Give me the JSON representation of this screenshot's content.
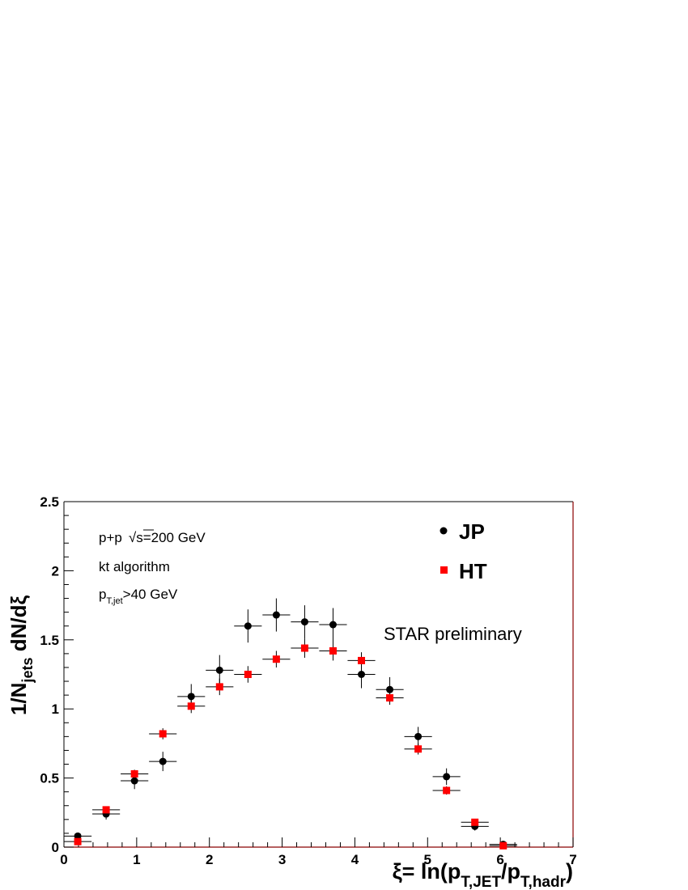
{
  "chart_data": {
    "type": "scatter",
    "title": "",
    "xlabel": {
      "prefix": "ξ= ln(p",
      "sub1": "T,JET",
      "mid": "/p",
      "sub2": "T,hadr",
      "suffix": ")"
    },
    "ylabel": {
      "prefix": "1/N",
      "sub": "jets",
      "suffix": " dN/dξ"
    },
    "xlim": [
      0,
      7
    ],
    "ylim": [
      0,
      2.5
    ],
    "x_ticks": [
      "0",
      "1",
      "2",
      "3",
      "4",
      "5",
      "6",
      "7"
    ],
    "y_ticks": [
      "0",
      "0.5",
      "1",
      "1.5",
      "2",
      "2.5"
    ],
    "grid": false,
    "legend": {
      "position": "top-right",
      "entries": [
        "JP",
        "HT"
      ]
    },
    "annotations": {
      "energy_prefix": "p+p",
      "energy_sqrt": "√",
      "energy_value": "s=200 GeV",
      "algorithm": "kt algorithm",
      "cut_prefix": "p",
      "cut_sub": "T,jet",
      "cut_suffix": ">40 GeV",
      "preliminary": "STAR preliminary"
    },
    "series": [
      {
        "name": "JP",
        "marker": "circle",
        "color": "#000000",
        "x": [
          0.19,
          0.58,
          0.97,
          1.36,
          1.75,
          2.14,
          2.53,
          2.92,
          3.31,
          3.7,
          4.09,
          4.48,
          4.87,
          5.26,
          5.65,
          6.04
        ],
        "y": [
          0.08,
          0.24,
          0.48,
          0.62,
          1.09,
          1.28,
          1.6,
          1.68,
          1.63,
          1.61,
          1.25,
          1.14,
          0.8,
          0.51,
          0.15,
          0.02
        ],
        "yerr": [
          0.02,
          0.04,
          0.06,
          0.07,
          0.09,
          0.11,
          0.12,
          0.12,
          0.12,
          0.12,
          0.1,
          0.09,
          0.07,
          0.06,
          0.03,
          0.01
        ],
        "xerr": 0.19
      },
      {
        "name": "HT",
        "marker": "square",
        "color": "#ff0000",
        "x": [
          0.19,
          0.58,
          0.97,
          1.36,
          1.75,
          2.14,
          2.53,
          2.92,
          3.31,
          3.7,
          4.09,
          4.48,
          4.87,
          5.26,
          5.65,
          6.04
        ],
        "y": [
          0.04,
          0.27,
          0.53,
          0.82,
          1.02,
          1.16,
          1.25,
          1.36,
          1.44,
          1.42,
          1.35,
          1.08,
          0.71,
          0.41,
          0.18,
          0.01
        ],
        "yerr": [
          0.01,
          0.02,
          0.03,
          0.04,
          0.05,
          0.06,
          0.06,
          0.06,
          0.07,
          0.07,
          0.06,
          0.05,
          0.04,
          0.03,
          0.02,
          0.01
        ],
        "xerr": 0.19
      }
    ]
  }
}
